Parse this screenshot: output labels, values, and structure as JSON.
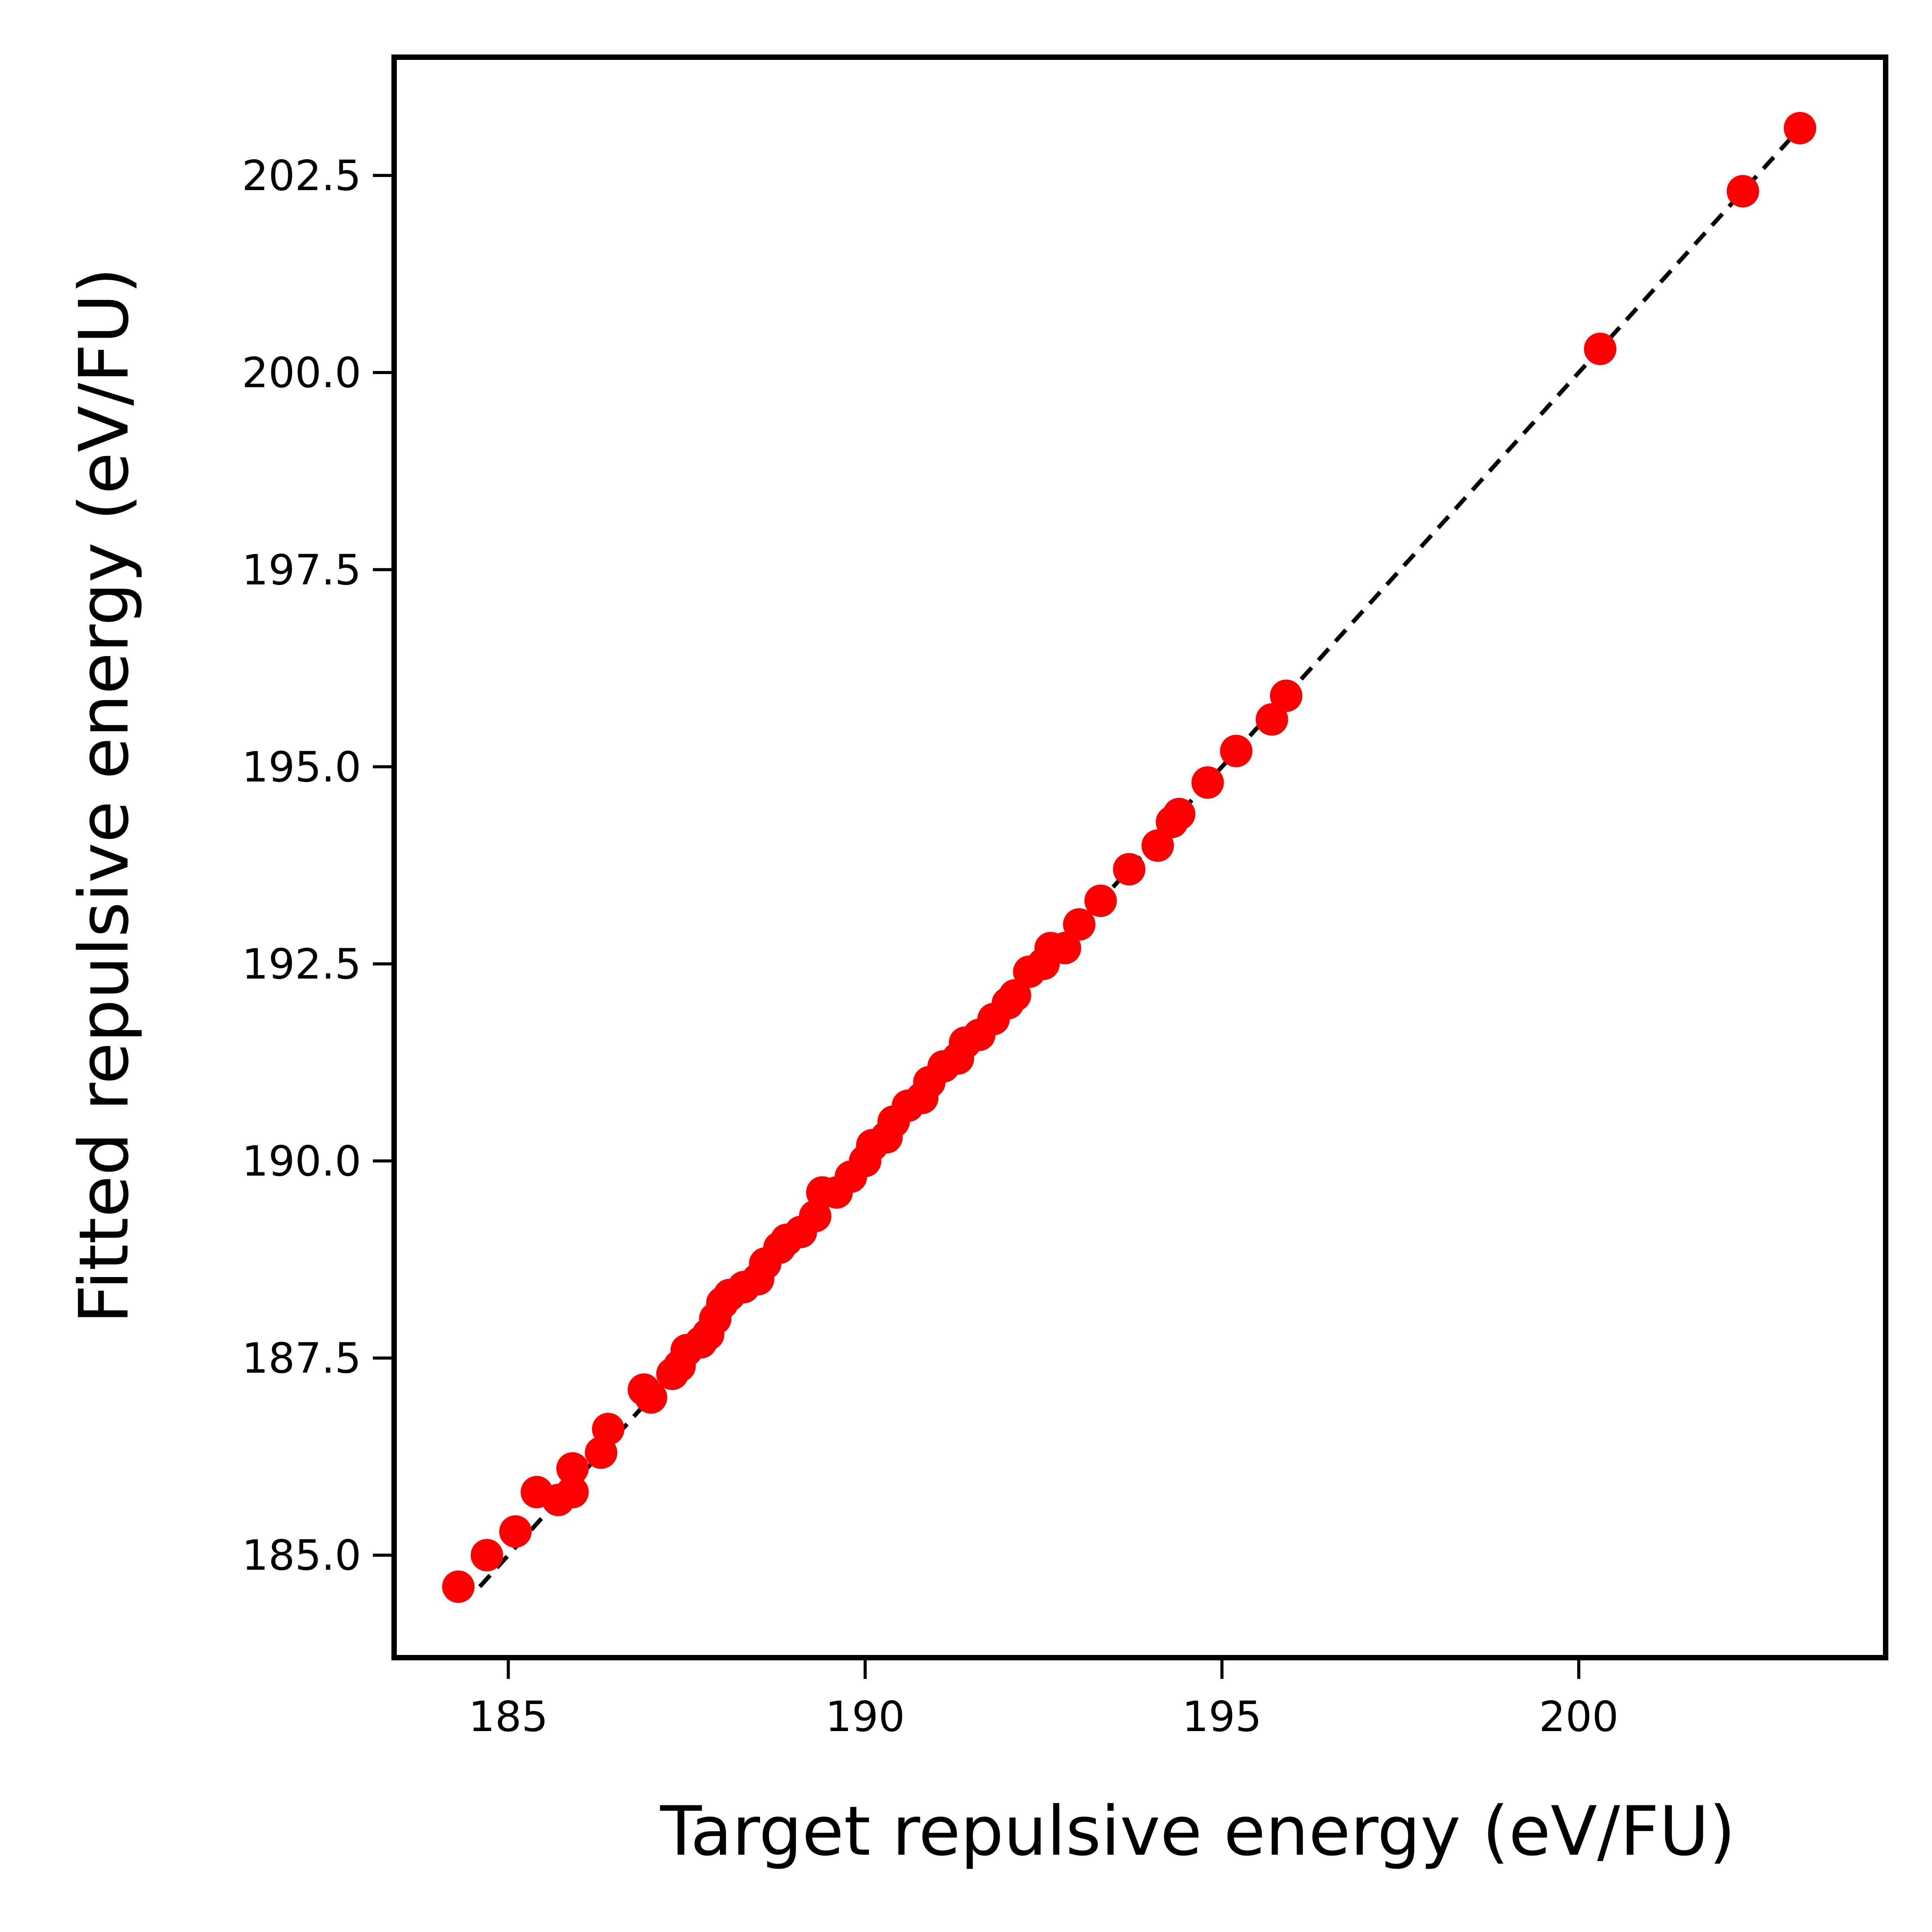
{
  "chart_data": {
    "type": "scatter",
    "title": "",
    "xlabel": "Target repulsive energy (eV/FU)",
    "ylabel": "Fitted repulsive energy (eV/FU)",
    "xlim": [
      183.4,
      204.3
    ],
    "ylim": [
      183.7,
      204.0
    ],
    "xticks": [
      185,
      190,
      195,
      200
    ],
    "xtick_labels": [
      "185",
      "190",
      "195",
      "200"
    ],
    "yticks": [
      185.0,
      187.5,
      190.0,
      192.5,
      195.0,
      197.5,
      200.0,
      202.5
    ],
    "ytick_labels": [
      "185.0",
      "187.5",
      "190.0",
      "192.5",
      "195.0",
      "197.5",
      "200.0",
      "202.5"
    ],
    "grid": false,
    "reference_line": {
      "style": "dashed",
      "color": "#000000",
      "from": [
        184.6,
        184.6
      ],
      "to": [
        203.2,
        203.2
      ]
    },
    "series": [
      {
        "marker_color": "#ff0000",
        "x": [
          184.3,
          184.7,
          185.1,
          185.4,
          185.7,
          185.9,
          185.9,
          186.3,
          186.4,
          186.9,
          187.0,
          187.3,
          187.4,
          187.5,
          187.7,
          187.8,
          187.9,
          188.0,
          188.1,
          188.3,
          188.5,
          188.6,
          188.8,
          188.9,
          189.1,
          189.3,
          189.4,
          189.6,
          189.8,
          190.0,
          190.1,
          190.3,
          190.4,
          190.6,
          190.8,
          190.9,
          191.1,
          191.3,
          191.4,
          191.6,
          191.8,
          192.0,
          192.1,
          192.3,
          192.5,
          192.6,
          192.8,
          193.0,
          193.3,
          193.7,
          194.1,
          194.3,
          194.4,
          194.8,
          195.2,
          195.7,
          195.9,
          200.3,
          202.3,
          203.1
        ],
        "y": [
          184.6,
          185.0,
          185.3,
          185.8,
          185.7,
          185.8,
          186.1,
          186.3,
          186.6,
          187.1,
          187.0,
          187.3,
          187.4,
          187.6,
          187.7,
          187.8,
          188.0,
          188.2,
          188.3,
          188.4,
          188.5,
          188.7,
          188.9,
          189.0,
          189.1,
          189.3,
          189.6,
          189.6,
          189.8,
          190.0,
          190.2,
          190.3,
          190.5,
          190.7,
          190.8,
          191.0,
          191.2,
          191.3,
          191.5,
          191.6,
          191.8,
          192.0,
          192.1,
          192.4,
          192.5,
          192.7,
          192.7,
          193.0,
          193.3,
          193.7,
          194.0,
          194.3,
          194.4,
          194.8,
          195.2,
          195.6,
          195.9,
          200.3,
          202.3,
          203.1
        ]
      }
    ]
  }
}
